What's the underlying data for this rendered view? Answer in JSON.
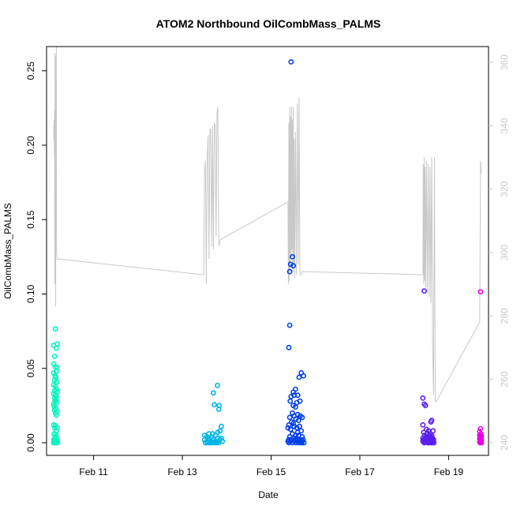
{
  "chart_data": {
    "type": "scatter",
    "title": "ATOM2 Northbound OilCombMass_PALMS",
    "xlabel": "Date",
    "ylabel": "OilCombMass_PALMS",
    "x_unit": "days (February)",
    "xlim": [
      9.94,
      19.9
    ],
    "ylim": [
      -0.0085,
      0.2663
    ],
    "y2lim": [
      236,
      365
    ],
    "x_ticks": [
      {
        "value": 11,
        "label": "Feb 11"
      },
      {
        "value": 13,
        "label": "Feb 13"
      },
      {
        "value": 15,
        "label": "Feb 15"
      },
      {
        "value": 17,
        "label": "Feb 17"
      },
      {
        "value": 19,
        "label": "Feb 19"
      }
    ],
    "y_ticks": [
      {
        "value": 0.0,
        "label": "0.00"
      },
      {
        "value": 0.05,
        "label": "0.05"
      },
      {
        "value": 0.1,
        "label": "0.10"
      },
      {
        "value": 0.15,
        "label": "0.15"
      },
      {
        "value": 0.2,
        "label": "0.20"
      },
      {
        "value": 0.25,
        "label": "0.25"
      }
    ],
    "y2_ticks": [
      {
        "value": 240,
        "label": "240"
      },
      {
        "value": 260,
        "label": "260"
      },
      {
        "value": 280,
        "label": "280"
      },
      {
        "value": 300,
        "label": "300"
      },
      {
        "value": 320,
        "label": "320"
      },
      {
        "value": 340,
        "label": "340"
      },
      {
        "value": 360,
        "label": "360"
      }
    ],
    "series": [
      {
        "color": "#00f5c0",
        "points": [
          [
            10.14,
            0.0765
          ],
          [
            10.1,
            0.0655
          ],
          [
            10.18,
            0.0665
          ],
          [
            10.16,
            0.0635
          ],
          [
            10.12,
            0.058
          ],
          [
            10.1,
            0.053
          ],
          [
            10.14,
            0.051
          ],
          [
            10.18,
            0.0505
          ],
          [
            10.16,
            0.048
          ],
          [
            10.1,
            0.047
          ],
          [
            10.13,
            0.045
          ],
          [
            10.15,
            0.044
          ],
          [
            10.12,
            0.042
          ],
          [
            10.17,
            0.041
          ],
          [
            10.1,
            0.039
          ],
          [
            10.14,
            0.038
          ],
          [
            10.16,
            0.036
          ],
          [
            10.12,
            0.035
          ],
          [
            10.18,
            0.034
          ],
          [
            10.1,
            0.033
          ],
          [
            10.14,
            0.032
          ],
          [
            10.16,
            0.031
          ],
          [
            10.12,
            0.03
          ],
          [
            10.15,
            0.029
          ],
          [
            10.13,
            0.028
          ],
          [
            10.17,
            0.027
          ],
          [
            10.1,
            0.026
          ],
          [
            10.11,
            0.0245
          ],
          [
            10.15,
            0.023
          ],
          [
            10.12,
            0.022
          ],
          [
            10.18,
            0.021
          ],
          [
            10.14,
            0.02
          ],
          [
            10.16,
            0.0185
          ],
          [
            10.1,
            0.012
          ],
          [
            10.14,
            0.0115
          ],
          [
            10.12,
            0.01
          ],
          [
            10.18,
            0.01
          ],
          [
            10.16,
            0.008
          ],
          [
            10.11,
            0.006
          ],
          [
            10.15,
            0.0055
          ],
          [
            10.13,
            0.004
          ],
          [
            10.17,
            0.003
          ],
          [
            10.1,
            0.002
          ],
          [
            10.12,
            0.0015
          ],
          [
            10.14,
            0.001
          ],
          [
            10.16,
            0.0005
          ],
          [
            10.18,
            0.001
          ],
          [
            10.1,
            0.0
          ],
          [
            10.13,
            0.0
          ],
          [
            10.15,
            0.0
          ],
          [
            10.17,
            0.0
          ],
          [
            10.11,
            0.0005
          ],
          [
            10.19,
            0.0003
          ]
        ]
      },
      {
        "color": "#00b4e6",
        "points": [
          [
            13.5,
            0.005
          ],
          [
            13.55,
            0.004
          ],
          [
            13.6,
            0.003
          ],
          [
            13.65,
            0.004
          ],
          [
            13.7,
            0.002
          ],
          [
            13.75,
            0.005
          ],
          [
            13.8,
            0.003
          ],
          [
            13.5,
            0.002
          ],
          [
            13.55,
            0.001
          ],
          [
            13.6,
            0.0015
          ],
          [
            13.65,
            0.001
          ],
          [
            13.7,
            0.0005
          ],
          [
            13.75,
            0.001
          ],
          [
            13.8,
            0.0008
          ],
          [
            13.52,
            0.0
          ],
          [
            13.57,
            0.0
          ],
          [
            13.62,
            0.0
          ],
          [
            13.67,
            0.0
          ],
          [
            13.72,
            0.0
          ],
          [
            13.77,
            0.0
          ],
          [
            13.82,
            0.0
          ],
          [
            13.85,
            0.002
          ],
          [
            13.88,
            0.003
          ],
          [
            13.9,
            0.001
          ],
          [
            13.79,
            0.0385
          ],
          [
            13.7,
            0.0335
          ],
          [
            13.72,
            0.0255
          ],
          [
            13.83,
            0.025
          ],
          [
            13.82,
            0.0225
          ],
          [
            13.88,
            0.011
          ],
          [
            13.85,
            0.008
          ],
          [
            13.8,
            0.007
          ],
          [
            13.68,
            0.006
          ],
          [
            13.6,
            0.006
          ]
        ]
      },
      {
        "color": "#0040e8",
        "points": [
          [
            15.45,
            0.256
          ],
          [
            15.48,
            0.125
          ],
          [
            15.44,
            0.12
          ],
          [
            15.5,
            0.119
          ],
          [
            15.42,
            0.115
          ],
          [
            15.42,
            0.079
          ],
          [
            15.4,
            0.064
          ],
          [
            15.68,
            0.047
          ],
          [
            15.73,
            0.045
          ],
          [
            15.63,
            0.044
          ],
          [
            15.55,
            0.036
          ],
          [
            15.5,
            0.034
          ],
          [
            15.52,
            0.032
          ],
          [
            15.6,
            0.032
          ],
          [
            15.45,
            0.031
          ],
          [
            15.43,
            0.028
          ],
          [
            15.58,
            0.027
          ],
          [
            15.5,
            0.025
          ],
          [
            15.65,
            0.028
          ],
          [
            15.55,
            0.024
          ],
          [
            15.48,
            0.02
          ],
          [
            15.6,
            0.019
          ],
          [
            15.52,
            0.018
          ],
          [
            15.66,
            0.018
          ],
          [
            15.7,
            0.017
          ],
          [
            15.42,
            0.017
          ],
          [
            15.56,
            0.016
          ],
          [
            15.62,
            0.015
          ],
          [
            15.46,
            0.014
          ],
          [
            15.5,
            0.013
          ],
          [
            15.4,
            0.012
          ],
          [
            15.64,
            0.011
          ],
          [
            15.52,
            0.011
          ],
          [
            15.58,
            0.01
          ],
          [
            15.38,
            0.01
          ],
          [
            15.44,
            0.009
          ],
          [
            15.68,
            0.008
          ],
          [
            15.6,
            0.007
          ],
          [
            15.48,
            0.006
          ],
          [
            15.55,
            0.005
          ],
          [
            15.62,
            0.005
          ],
          [
            15.42,
            0.004
          ],
          [
            15.7,
            0.004
          ],
          [
            15.5,
            0.003
          ],
          [
            15.57,
            0.003
          ],
          [
            15.4,
            0.002
          ],
          [
            15.46,
            0.002
          ],
          [
            15.54,
            0.002
          ],
          [
            15.6,
            0.002
          ],
          [
            15.66,
            0.002
          ],
          [
            15.72,
            0.002
          ],
          [
            15.38,
            0.001
          ],
          [
            15.44,
            0.001
          ],
          [
            15.52,
            0.001
          ],
          [
            15.58,
            0.001
          ],
          [
            15.64,
            0.001
          ],
          [
            15.7,
            0.001
          ],
          [
            15.4,
            0.0
          ],
          [
            15.48,
            0.0
          ],
          [
            15.56,
            0.0
          ],
          [
            15.63,
            0.0
          ],
          [
            15.69,
            0.0
          ],
          [
            15.74,
            0.0
          ]
        ]
      },
      {
        "color": "#5a1ef0",
        "points": [
          [
            18.45,
            0.102
          ],
          [
            18.42,
            0.03
          ],
          [
            18.45,
            0.026
          ],
          [
            18.48,
            0.025
          ],
          [
            18.62,
            0.015
          ],
          [
            18.6,
            0.014
          ],
          [
            18.42,
            0.012
          ],
          [
            18.5,
            0.009
          ],
          [
            18.55,
            0.008
          ],
          [
            18.65,
            0.008
          ],
          [
            18.44,
            0.007
          ],
          [
            18.52,
            0.006
          ],
          [
            18.58,
            0.006
          ],
          [
            18.62,
            0.005
          ],
          [
            18.46,
            0.005
          ],
          [
            18.5,
            0.004
          ],
          [
            18.56,
            0.004
          ],
          [
            18.6,
            0.004
          ],
          [
            18.64,
            0.003
          ],
          [
            18.42,
            0.003
          ],
          [
            18.48,
            0.003
          ],
          [
            18.54,
            0.003
          ],
          [
            18.58,
            0.002
          ],
          [
            18.62,
            0.002
          ],
          [
            18.66,
            0.002
          ],
          [
            18.44,
            0.002
          ],
          [
            18.5,
            0.0015
          ],
          [
            18.55,
            0.001
          ],
          [
            18.6,
            0.001
          ],
          [
            18.65,
            0.001
          ],
          [
            18.42,
            0.001
          ],
          [
            18.47,
            0.0005
          ],
          [
            18.52,
            0.0005
          ],
          [
            18.57,
            0.0
          ],
          [
            18.63,
            0.0
          ],
          [
            18.45,
            0.0
          ],
          [
            18.53,
            0.0
          ],
          [
            18.61,
            0.0
          ],
          [
            18.67,
            0.0
          ]
        ]
      },
      {
        "color": "#e600e6",
        "points": [
          [
            19.72,
            0.1015
          ],
          [
            19.72,
            0.0095
          ],
          [
            19.7,
            0.0075
          ],
          [
            19.73,
            0.006
          ],
          [
            19.7,
            0.005
          ],
          [
            19.74,
            0.0045
          ],
          [
            19.71,
            0.004
          ],
          [
            19.73,
            0.003
          ],
          [
            19.7,
            0.0025
          ],
          [
            19.74,
            0.002
          ],
          [
            19.71,
            0.0015
          ],
          [
            19.72,
            0.001
          ],
          [
            19.7,
            0.0005
          ],
          [
            19.73,
            0.0005
          ],
          [
            19.71,
            0.0
          ],
          [
            19.74,
            0.0
          ]
        ]
      }
    ],
    "line_series": {
      "color": "#c8c8c8",
      "axis": "right",
      "points": [
        [
          10.1,
          340
        ],
        [
          10.105,
          335
        ],
        [
          10.11,
          342
        ],
        [
          10.115,
          331
        ],
        [
          10.12,
          345
        ],
        [
          10.125,
          290
        ],
        [
          10.13,
          363
        ],
        [
          10.135,
          305
        ],
        [
          10.14,
          355
        ],
        [
          10.145,
          283
        ],
        [
          10.15,
          362
        ],
        [
          10.155,
          312
        ],
        [
          10.16,
          365
        ],
        [
          10.165,
          300
        ],
        [
          10.18,
          298
        ],
        [
          13.48,
          293
        ],
        [
          13.5,
          326
        ],
        [
          13.52,
          329
        ],
        [
          13.54,
          290
        ],
        [
          13.56,
          330
        ],
        [
          13.58,
          337
        ],
        [
          13.6,
          298
        ],
        [
          13.62,
          339
        ],
        [
          13.64,
          339
        ],
        [
          13.66,
          302
        ],
        [
          13.68,
          340
        ],
        [
          13.7,
          301
        ],
        [
          13.72,
          341
        ],
        [
          13.74,
          340
        ],
        [
          13.76,
          305
        ],
        [
          13.78,
          344
        ],
        [
          13.8,
          346
        ],
        [
          13.82,
          302
        ],
        [
          13.85,
          304
        ],
        [
          15.38,
          316
        ],
        [
          15.39,
          290
        ],
        [
          15.4,
          341
        ],
        [
          15.41,
          291
        ],
        [
          15.42,
          346
        ],
        [
          15.43,
          294
        ],
        [
          15.44,
          343
        ],
        [
          15.45,
          298
        ],
        [
          15.46,
          346
        ],
        [
          15.47,
          301
        ],
        [
          15.48,
          342
        ],
        [
          15.49,
          294
        ],
        [
          15.5,
          346
        ],
        [
          15.51,
          296
        ],
        [
          15.52,
          336
        ],
        [
          15.53,
          292
        ],
        [
          15.55,
          338
        ],
        [
          15.57,
          293
        ],
        [
          15.59,
          347
        ],
        [
          15.61,
          296
        ],
        [
          15.63,
          349
        ],
        [
          15.65,
          293
        ],
        [
          15.68,
          293
        ],
        [
          15.7,
          294
        ],
        [
          18.42,
          293
        ],
        [
          18.43,
          328
        ],
        [
          18.44,
          290
        ],
        [
          18.45,
          330
        ],
        [
          18.46,
          291
        ],
        [
          18.47,
          327
        ],
        [
          18.48,
          289
        ],
        [
          18.5,
          329
        ],
        [
          18.52,
          287
        ],
        [
          18.54,
          328
        ],
        [
          18.56,
          286
        ],
        [
          18.58,
          327
        ],
        [
          18.6,
          284
        ],
        [
          18.62,
          330
        ],
        [
          18.64,
          270
        ],
        [
          18.66,
          255
        ],
        [
          18.68,
          330
        ],
        [
          18.7,
          253
        ],
        [
          18.72,
          253
        ],
        [
          19.7,
          278
        ],
        [
          19.72,
          329
        ],
        [
          19.74,
          325
        ]
      ]
    }
  }
}
